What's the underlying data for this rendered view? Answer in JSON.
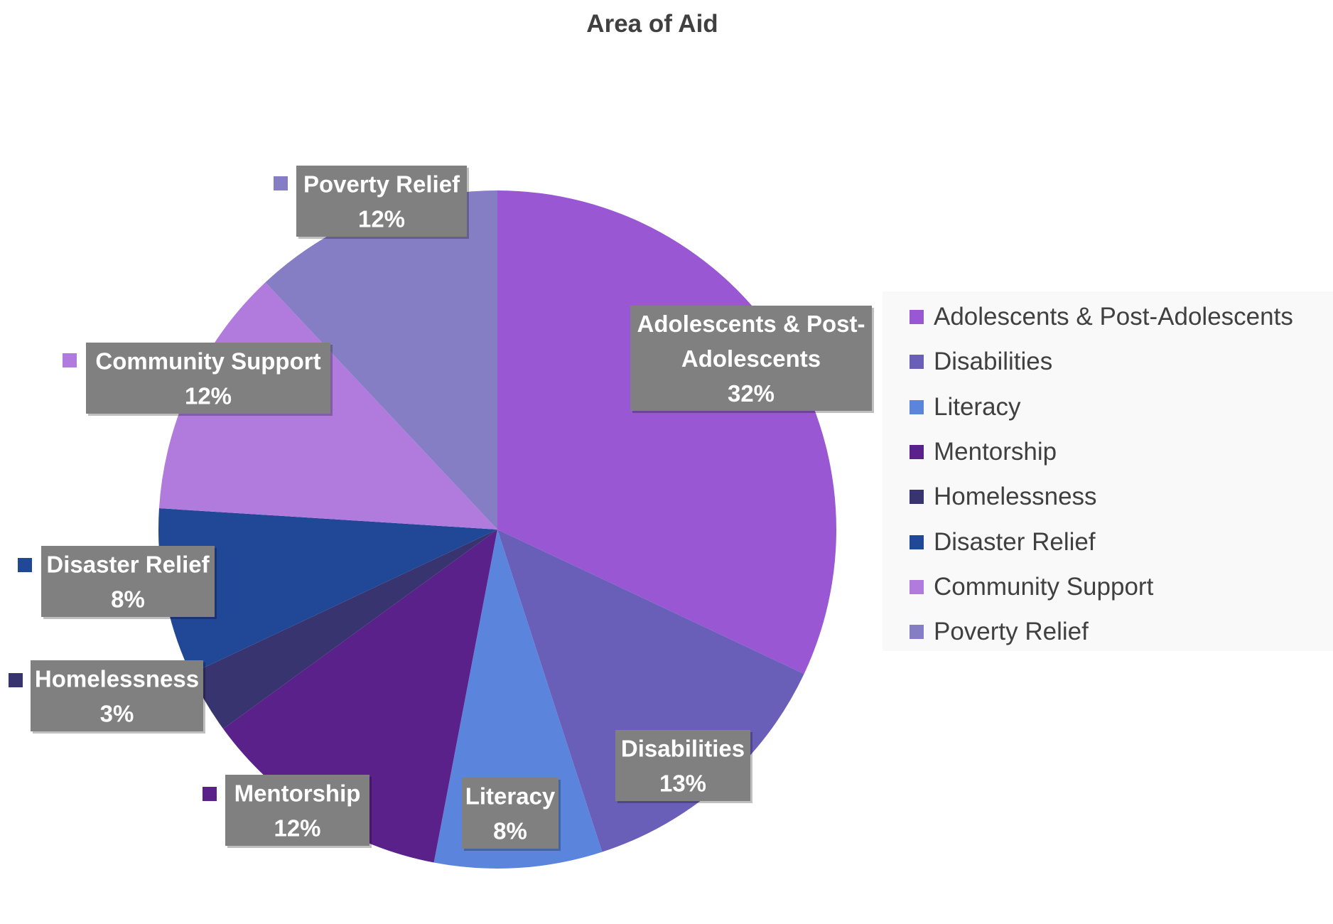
{
  "chart_data": {
    "type": "pie",
    "title": "Area of Aid",
    "slices": [
      {
        "name": "Adolescents & Post-Adolescents",
        "label_lines": [
          "Adolescents & Post-",
          "Adolescents"
        ],
        "value": 32,
        "value_label": "32%",
        "color": "#9957d3"
      },
      {
        "name": "Disabilities",
        "label_lines": [
          "Disabilities"
        ],
        "value": 13,
        "value_label": "13%",
        "color": "#6a5fb8"
      },
      {
        "name": "Literacy",
        "label_lines": [
          "Literacy"
        ],
        "value": 8,
        "value_label": "8%",
        "color": "#5b84dc"
      },
      {
        "name": "Mentorship",
        "label_lines": [
          "Mentorship"
        ],
        "value": 12,
        "value_label": "12%",
        "color": "#5b218b"
      },
      {
        "name": "Homelessness",
        "label_lines": [
          "Homelessness"
        ],
        "value": 3,
        "value_label": "3%",
        "color": "#38346f"
      },
      {
        "name": "Disaster Relief",
        "label_lines": [
          "Disaster Relief"
        ],
        "value": 8,
        "value_label": "8%",
        "color": "#214797"
      },
      {
        "name": "Community Support",
        "label_lines": [
          "Community Support"
        ],
        "value": 12,
        "value_label": "12%",
        "color": "#b07bdd"
      },
      {
        "name": "Poverty Relief",
        "label_lines": [
          "Poverty Relief"
        ],
        "value": 12,
        "value_label": "12%",
        "color": "#867ec5"
      }
    ],
    "legend_position": "right",
    "data_label_background": "#808080",
    "data_label_text_color": "#ffffff"
  }
}
